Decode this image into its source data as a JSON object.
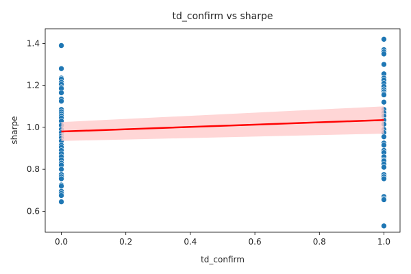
{
  "chart_data": {
    "type": "scatter",
    "title": "td_confirm vs sharpe",
    "xlabel": "td_confirm",
    "ylabel": "sharpe",
    "xlim": [
      -0.05,
      1.05
    ],
    "ylim": [
      0.5,
      1.47
    ],
    "xticks": [
      0.0,
      0.2,
      0.4,
      0.6,
      0.8,
      1.0
    ],
    "xtick_labels": [
      "0.0",
      "0.2",
      "0.4",
      "0.6",
      "0.8",
      "1.0"
    ],
    "yticks": [
      0.6,
      0.8,
      1.0,
      1.2,
      1.4
    ],
    "ytick_labels": [
      "0.6",
      "0.8",
      "1.0",
      "1.2",
      "1.4"
    ],
    "grid": false,
    "colors": {
      "points": "#1f77b4",
      "fit_line": "#ff0000",
      "ci_band": "#ffcccc"
    },
    "series": [
      {
        "x_value": 0,
        "y": [
          1.39,
          1.28,
          1.235,
          1.23,
          1.215,
          1.205,
          1.19,
          1.185,
          1.165,
          1.135,
          1.125,
          1.085,
          1.075,
          1.065,
          1.055,
          1.045,
          1.03,
          1.01,
          0.99,
          0.975,
          0.96,
          0.95,
          0.935,
          0.915,
          0.905,
          0.89,
          0.875,
          0.86,
          0.845,
          0.83,
          0.82,
          0.8,
          0.775,
          0.765,
          0.755,
          0.725,
          0.72,
          0.695,
          0.685,
          0.675,
          0.645
        ]
      },
      {
        "x_value": 1,
        "y": [
          1.42,
          1.37,
          1.36,
          1.35,
          1.3,
          1.255,
          1.235,
          1.225,
          1.21,
          1.195,
          1.18,
          1.17,
          1.16,
          1.155,
          1.12,
          1.085,
          1.07,
          1.055,
          1.035,
          1.015,
          0.99,
          0.975,
          0.955,
          0.925,
          0.915,
          0.89,
          0.88,
          0.86,
          0.845,
          0.84,
          0.825,
          0.81,
          0.775,
          0.765,
          0.755,
          0.67,
          0.66,
          0.655,
          0.53
        ]
      }
    ],
    "regression": {
      "x": [
        0,
        1
      ],
      "y": [
        0.98,
        1.035
      ],
      "ci_lower": [
        0.935,
        0.97
      ],
      "ci_upper": [
        1.025,
        1.1
      ]
    }
  }
}
